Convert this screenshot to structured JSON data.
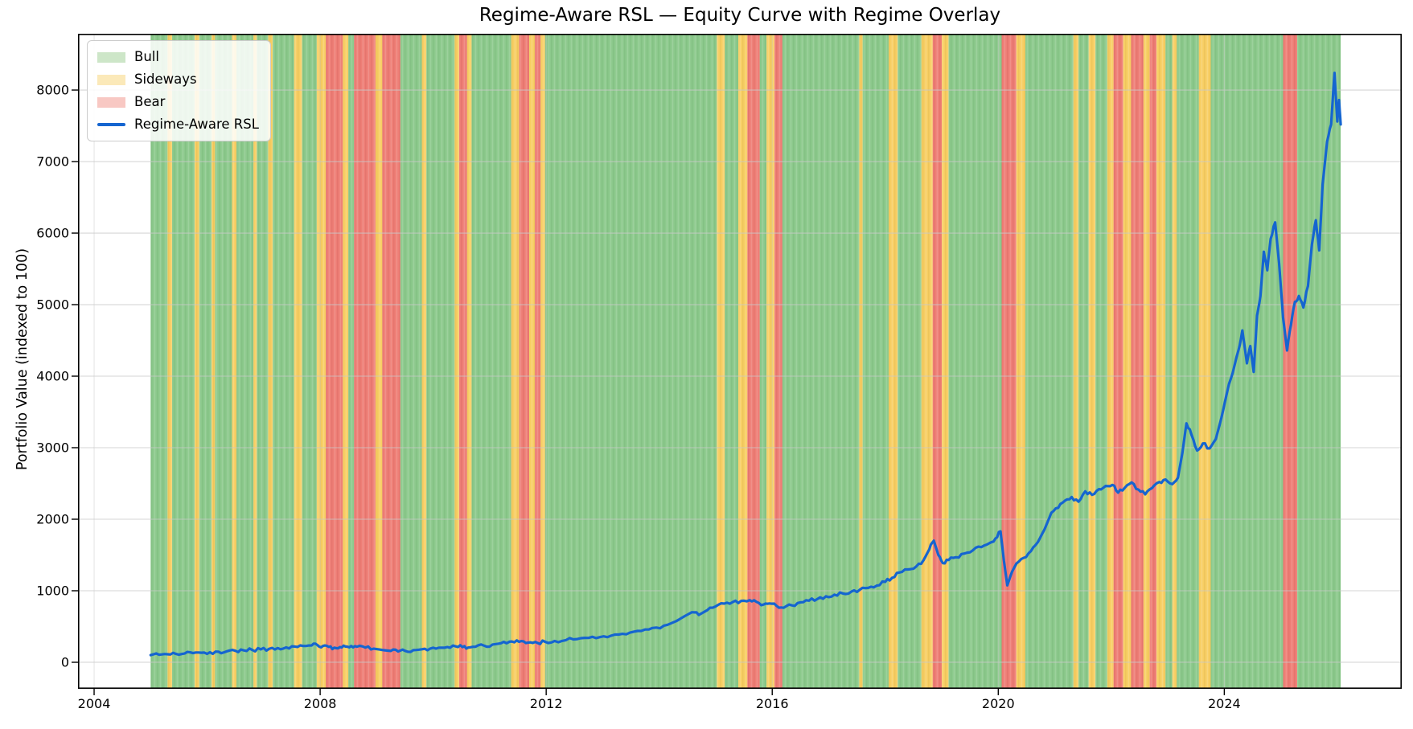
{
  "title": "Regime-Aware RSL — Equity Curve with Regime Overlay",
  "axes": {
    "y_label": "Portfolio Value (indexed to 100)",
    "x_tick_labels": [
      "2004",
      "2008",
      "2012",
      "2016",
      "2020",
      "2024"
    ],
    "y_tick_labels": [
      "0",
      "1000",
      "2000",
      "3000",
      "4000",
      "5000",
      "6000",
      "7000",
      "8000"
    ]
  },
  "legend": {
    "items": [
      {
        "label": "Bull",
        "kind": "patch",
        "color": "#cde6c8"
      },
      {
        "label": "Sideways",
        "kind": "patch",
        "color": "#fbe9b9"
      },
      {
        "label": "Bear",
        "kind": "patch",
        "color": "#f8c8c3"
      },
      {
        "label": "Regime-Aware RSL",
        "kind": "line",
        "color": "#1565d0"
      }
    ]
  },
  "colors": {
    "bull": "#8cc98c",
    "sideways": "#f7ce63",
    "bear": "#ee7e76",
    "line": "#1565d0",
    "grid": "#c9c9c9",
    "spine": "#000000",
    "background": "#ffffff"
  },
  "chart_data": {
    "type": "line",
    "title": "Regime-Aware RSL — Equity Curve with Regime Overlay",
    "xlabel": "",
    "ylabel": "Portfolio Value (indexed to 100)",
    "xlim": [
      2003.715,
      2027.14
    ],
    "ylim": [
      -371,
      8787
    ],
    "x_ticks": [
      2004,
      2008,
      2012,
      2016,
      2020,
      2024
    ],
    "y_ticks": [
      0,
      1000,
      2000,
      3000,
      4000,
      5000,
      6000,
      7000,
      8000
    ],
    "grid": true,
    "legend_position": "upper left",
    "regime_colors": {
      "bull": "#8cc98c",
      "sideways": "#f7ce63",
      "bear": "#ee7e76"
    },
    "regime_segments": [
      [
        "bull",
        2005.0,
        2005.3
      ],
      [
        "sideways",
        2005.3,
        2005.38
      ],
      [
        "bull",
        2005.38,
        2005.78
      ],
      [
        "sideways",
        2005.78,
        2005.86
      ],
      [
        "bull",
        2005.86,
        2006.08
      ],
      [
        "sideways",
        2006.08,
        2006.14
      ],
      [
        "bull",
        2006.14,
        2006.44
      ],
      [
        "sideways",
        2006.44,
        2006.52
      ],
      [
        "bull",
        2006.52,
        2006.82
      ],
      [
        "sideways",
        2006.82,
        2006.88
      ],
      [
        "bull",
        2006.88,
        2007.08
      ],
      [
        "sideways",
        2007.08,
        2007.16
      ],
      [
        "bull",
        2007.16,
        2007.54
      ],
      [
        "sideways",
        2007.54,
        2007.68
      ],
      [
        "bull",
        2007.68,
        2007.94
      ],
      [
        "sideways",
        2007.94,
        2008.1
      ],
      [
        "bear",
        2008.1,
        2008.4
      ],
      [
        "sideways",
        2008.4,
        2008.5
      ],
      [
        "bull",
        2008.5,
        2008.6
      ],
      [
        "bear",
        2008.6,
        2008.98
      ],
      [
        "sideways",
        2008.98,
        2009.1
      ],
      [
        "bear",
        2009.1,
        2009.42
      ],
      [
        "bull",
        2009.42,
        2009.8
      ],
      [
        "sideways",
        2009.8,
        2009.88
      ],
      [
        "bull",
        2009.88,
        2010.38
      ],
      [
        "sideways",
        2010.38,
        2010.46
      ],
      [
        "bear",
        2010.46,
        2010.6
      ],
      [
        "sideways",
        2010.6,
        2010.68
      ],
      [
        "bull",
        2010.68,
        2011.38
      ],
      [
        "sideways",
        2011.38,
        2011.52
      ],
      [
        "bear",
        2011.52,
        2011.7
      ],
      [
        "sideways",
        2011.7,
        2011.8
      ],
      [
        "bear",
        2011.8,
        2011.9
      ],
      [
        "sideways",
        2011.9,
        2011.98
      ],
      [
        "bull",
        2011.98,
        2015.02
      ],
      [
        "sideways",
        2015.02,
        2015.16
      ],
      [
        "bull",
        2015.16,
        2015.4
      ],
      [
        "sideways",
        2015.4,
        2015.56
      ],
      [
        "bear",
        2015.56,
        2015.78
      ],
      [
        "bull",
        2015.78,
        2015.9
      ],
      [
        "sideways",
        2015.9,
        2016.04
      ],
      [
        "bear",
        2016.04,
        2016.18
      ],
      [
        "bull",
        2016.18,
        2017.54
      ],
      [
        "sideways",
        2017.54,
        2017.6
      ],
      [
        "bull",
        2017.6,
        2018.06
      ],
      [
        "sideways",
        2018.06,
        2018.22
      ],
      [
        "bull",
        2018.22,
        2018.64
      ],
      [
        "sideways",
        2018.64,
        2018.84
      ],
      [
        "bear",
        2018.84,
        2019.0
      ],
      [
        "sideways",
        2019.0,
        2019.12
      ],
      [
        "bull",
        2019.12,
        2020.06
      ],
      [
        "bear",
        2020.06,
        2020.32
      ],
      [
        "sideways",
        2020.32,
        2020.48
      ],
      [
        "bull",
        2020.48,
        2021.33
      ],
      [
        "sideways",
        2021.33,
        2021.42
      ],
      [
        "bull",
        2021.42,
        2021.6
      ],
      [
        "sideways",
        2021.6,
        2021.72
      ],
      [
        "bull",
        2021.72,
        2021.93
      ],
      [
        "sideways",
        2021.93,
        2022.04
      ],
      [
        "bear",
        2022.04,
        2022.21
      ],
      [
        "sideways",
        2022.21,
        2022.35
      ],
      [
        "bear",
        2022.35,
        2022.57
      ],
      [
        "sideways",
        2022.57,
        2022.68
      ],
      [
        "bear",
        2022.68,
        2022.8
      ],
      [
        "sideways",
        2022.8,
        2022.96
      ],
      [
        "bull",
        2022.96,
        2023.08
      ],
      [
        "sideways",
        2023.08,
        2023.16
      ],
      [
        "bull",
        2023.16,
        2023.55
      ],
      [
        "sideways",
        2023.55,
        2023.76
      ],
      [
        "bull",
        2023.76,
        2025.04
      ],
      [
        "bear",
        2025.04,
        2025.29
      ],
      [
        "bull",
        2025.29,
        2026.06
      ]
    ],
    "series": [
      {
        "name": "Regime-Aware RSL",
        "color": "#1565d0",
        "points": [
          [
            2005.0,
            100
          ],
          [
            2005.15,
            106
          ],
          [
            2005.3,
            112
          ],
          [
            2005.45,
            117
          ],
          [
            2005.6,
            122
          ],
          [
            2005.75,
            128
          ],
          [
            2005.9,
            134
          ],
          [
            2006.05,
            140
          ],
          [
            2006.2,
            148
          ],
          [
            2006.35,
            154
          ],
          [
            2006.5,
            160
          ],
          [
            2006.65,
            166
          ],
          [
            2006.8,
            172
          ],
          [
            2006.95,
            181
          ],
          [
            2007.1,
            190
          ],
          [
            2007.25,
            199
          ],
          [
            2007.4,
            208
          ],
          [
            2007.55,
            220
          ],
          [
            2007.7,
            228
          ],
          [
            2007.85,
            236
          ],
          [
            2007.95,
            241
          ],
          [
            2008.05,
            228
          ],
          [
            2008.15,
            216
          ],
          [
            2008.25,
            204
          ],
          [
            2008.35,
            212
          ],
          [
            2008.45,
            220
          ],
          [
            2008.55,
            228
          ],
          [
            2008.65,
            218
          ],
          [
            2008.8,
            205
          ],
          [
            2008.95,
            190
          ],
          [
            2009.1,
            172
          ],
          [
            2009.25,
            158
          ],
          [
            2009.38,
            150
          ],
          [
            2009.5,
            160
          ],
          [
            2009.65,
            170
          ],
          [
            2009.8,
            182
          ],
          [
            2009.95,
            192
          ],
          [
            2010.1,
            203
          ],
          [
            2010.25,
            213
          ],
          [
            2010.4,
            222
          ],
          [
            2010.52,
            212
          ],
          [
            2010.62,
            206
          ],
          [
            2010.75,
            218
          ],
          [
            2010.9,
            232
          ],
          [
            2011.05,
            248
          ],
          [
            2011.2,
            266
          ],
          [
            2011.35,
            288
          ],
          [
            2011.48,
            306
          ],
          [
            2011.6,
            292
          ],
          [
            2011.72,
            278
          ],
          [
            2011.85,
            270
          ],
          [
            2011.98,
            286
          ],
          [
            2012.15,
            298
          ],
          [
            2012.35,
            310
          ],
          [
            2012.55,
            324
          ],
          [
            2012.75,
            340
          ],
          [
            2012.95,
            352
          ],
          [
            2013.15,
            372
          ],
          [
            2013.35,
            398
          ],
          [
            2013.55,
            428
          ],
          [
            2013.75,
            458
          ],
          [
            2013.95,
            485
          ],
          [
            2014.15,
            525
          ],
          [
            2014.3,
            575
          ],
          [
            2014.45,
            645
          ],
          [
            2014.58,
            700
          ],
          [
            2014.7,
            662
          ],
          [
            2014.85,
            728
          ],
          [
            2015.0,
            782
          ],
          [
            2015.15,
            820
          ],
          [
            2015.3,
            842
          ],
          [
            2015.45,
            858
          ],
          [
            2015.6,
            868
          ],
          [
            2015.72,
            845
          ],
          [
            2015.85,
            808
          ],
          [
            2015.95,
            822
          ],
          [
            2016.08,
            788
          ],
          [
            2016.2,
            762
          ],
          [
            2016.35,
            795
          ],
          [
            2016.5,
            838
          ],
          [
            2016.65,
            862
          ],
          [
            2016.8,
            885
          ],
          [
            2016.95,
            922
          ],
          [
            2017.1,
            945
          ],
          [
            2017.25,
            962
          ],
          [
            2017.4,
            988
          ],
          [
            2017.55,
            1015
          ],
          [
            2017.7,
            1040
          ],
          [
            2017.85,
            1072
          ],
          [
            2018.0,
            1125
          ],
          [
            2018.12,
            1180
          ],
          [
            2018.25,
            1255
          ],
          [
            2018.4,
            1298
          ],
          [
            2018.55,
            1340
          ],
          [
            2018.68,
            1430
          ],
          [
            2018.78,
            1580
          ],
          [
            2018.86,
            1700
          ],
          [
            2018.94,
            1500
          ],
          [
            2019.02,
            1385
          ],
          [
            2019.12,
            1430
          ],
          [
            2019.25,
            1468
          ],
          [
            2019.4,
            1520
          ],
          [
            2019.55,
            1565
          ],
          [
            2019.7,
            1610
          ],
          [
            2019.85,
            1668
          ],
          [
            2019.95,
            1730
          ],
          [
            2020.04,
            1830
          ],
          [
            2020.1,
            1420
          ],
          [
            2020.16,
            1075
          ],
          [
            2020.24,
            1260
          ],
          [
            2020.32,
            1380
          ],
          [
            2020.45,
            1460
          ],
          [
            2020.58,
            1555
          ],
          [
            2020.7,
            1680
          ],
          [
            2020.82,
            1860
          ],
          [
            2020.94,
            2090
          ],
          [
            2021.06,
            2160
          ],
          [
            2021.18,
            2260
          ],
          [
            2021.3,
            2310
          ],
          [
            2021.42,
            2245
          ],
          [
            2021.54,
            2390
          ],
          [
            2021.66,
            2340
          ],
          [
            2021.78,
            2420
          ],
          [
            2021.9,
            2465
          ],
          [
            2022.02,
            2480
          ],
          [
            2022.12,
            2372
          ],
          [
            2022.24,
            2440
          ],
          [
            2022.36,
            2515
          ],
          [
            2022.48,
            2415
          ],
          [
            2022.6,
            2348
          ],
          [
            2022.72,
            2435
          ],
          [
            2022.85,
            2520
          ],
          [
            2022.96,
            2555
          ],
          [
            2023.08,
            2490
          ],
          [
            2023.18,
            2580
          ],
          [
            2023.26,
            2940
          ],
          [
            2023.33,
            3340
          ],
          [
            2023.42,
            3180
          ],
          [
            2023.52,
            2960
          ],
          [
            2023.62,
            3060
          ],
          [
            2023.74,
            2990
          ],
          [
            2023.85,
            3120
          ],
          [
            2023.95,
            3420
          ],
          [
            2024.05,
            3780
          ],
          [
            2024.15,
            4050
          ],
          [
            2024.25,
            4360
          ],
          [
            2024.32,
            4640
          ],
          [
            2024.4,
            4180
          ],
          [
            2024.46,
            4420
          ],
          [
            2024.52,
            4060
          ],
          [
            2024.58,
            4850
          ],
          [
            2024.64,
            5120
          ],
          [
            2024.7,
            5740
          ],
          [
            2024.76,
            5480
          ],
          [
            2024.82,
            5920
          ],
          [
            2024.9,
            6150
          ],
          [
            2024.97,
            5580
          ],
          [
            2025.04,
            4820
          ],
          [
            2025.11,
            4360
          ],
          [
            2025.18,
            4720
          ],
          [
            2025.25,
            5040
          ],
          [
            2025.32,
            5120
          ],
          [
            2025.4,
            4960
          ],
          [
            2025.48,
            5260
          ],
          [
            2025.55,
            5840
          ],
          [
            2025.62,
            6180
          ],
          [
            2025.68,
            5760
          ],
          [
            2025.74,
            6680
          ],
          [
            2025.82,
            7280
          ],
          [
            2025.89,
            7520
          ],
          [
            2025.95,
            8240
          ],
          [
            2026.0,
            7560
          ],
          [
            2026.03,
            7860
          ],
          [
            2026.06,
            7520
          ]
        ]
      }
    ]
  }
}
